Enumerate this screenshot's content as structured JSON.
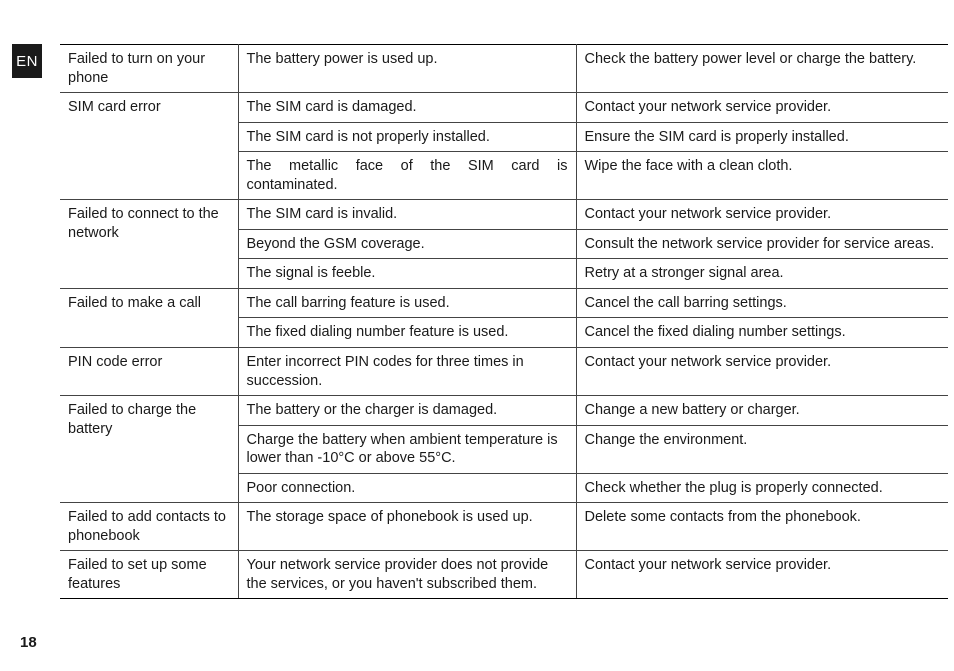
{
  "lang_tab": "EN",
  "page_number": "18",
  "rows": [
    {
      "prob": "Failed to turn on your phone",
      "cause": "The battery power is used up.",
      "sol": "Check the battery power level or charge the battery.",
      "rowspan": 1,
      "group": true
    },
    {
      "prob": "SIM card error",
      "cause": "The SIM card is damaged.",
      "sol": "Contact your network service provider.",
      "rowspan": 3,
      "group": true
    },
    {
      "cause": "The SIM card is not properly installed.",
      "sol": "Ensure the SIM card is properly installed."
    },
    {
      "cause": "The metallic face of the SIM card is contaminated.",
      "sol": "Wipe the face with a clean cloth.",
      "justify": true
    },
    {
      "prob": "Failed to connect to the network",
      "cause": "The SIM card is invalid.",
      "sol": "Contact your network service provider.",
      "rowspan": 3,
      "group": true
    },
    {
      "cause": "Beyond the GSM coverage.",
      "sol": "Consult the network service provider for service areas."
    },
    {
      "cause": "The signal is feeble.",
      "sol": "Retry at a stronger signal area."
    },
    {
      "prob": "Failed to make a call",
      "cause": "The call barring feature is used.",
      "sol": "Cancel the call barring settings.",
      "rowspan": 2,
      "group": true
    },
    {
      "cause": "The fixed dialing number feature is used.",
      "sol": "Cancel the fixed dialing number settings."
    },
    {
      "prob": "PIN code error",
      "cause": "Enter incorrect PIN codes for three times in succession.",
      "sol": "Contact your network service provider.",
      "rowspan": 1,
      "group": true
    },
    {
      "prob": "Failed to charge the battery",
      "cause": "The battery or the charger is damaged.",
      "sol": "Change a new battery or charger.",
      "rowspan": 3,
      "group": true
    },
    {
      "cause": "Charge the battery when ambient  temperature is lower  than -10°C or above 55°C.",
      "sol": "Change the environment."
    },
    {
      "cause": "Poor connection.",
      "sol": "Check whether the plug is properly connected."
    },
    {
      "prob": "Failed to add contacts to phonebook",
      "cause": "The storage space of phonebook is used up.",
      "sol": "Delete some contacts from the phonebook.",
      "rowspan": 1,
      "group": true
    },
    {
      "prob": "Failed to set up some features",
      "cause": "Your network service provider does not provide the services, or you haven't subscribed them.",
      "sol": "Contact your network service provider.",
      "rowspan": 1,
      "group": true,
      "last": true
    }
  ]
}
